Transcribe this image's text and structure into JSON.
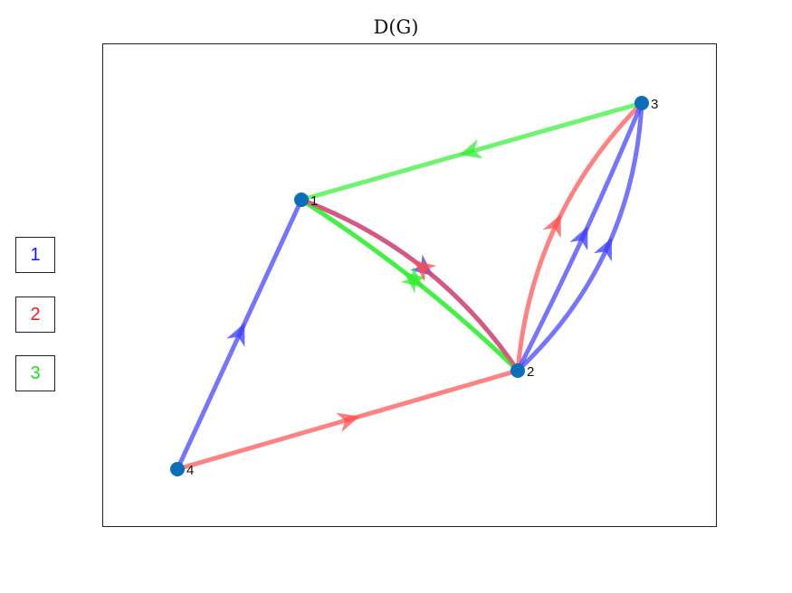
{
  "title": "D(G)",
  "colors": {
    "1": "#3a3aff",
    "2": "#ff4d4d",
    "3": "#33ee33",
    "node": "#0a6fb8"
  },
  "legend": [
    {
      "label": "1",
      "color": "#1414ff"
    },
    {
      "label": "2",
      "color": "#ff1a1a"
    },
    {
      "label": "3",
      "color": "#22dd22"
    }
  ],
  "nodes": [
    {
      "id": "1",
      "label": "1"
    },
    {
      "id": "2",
      "label": "2"
    },
    {
      "id": "3",
      "label": "3"
    },
    {
      "id": "4",
      "label": "4"
    }
  ],
  "edges": [
    {
      "from": "4",
      "to": "1",
      "color": "1"
    },
    {
      "from": "4",
      "to": "2",
      "color": "2"
    },
    {
      "from": "3",
      "to": "1",
      "color": "3"
    },
    {
      "from": "1",
      "to": "2",
      "color": "1"
    },
    {
      "from": "1",
      "to": "2",
      "color": "3"
    },
    {
      "from": "2",
      "to": "1",
      "color": "3"
    },
    {
      "from": "2",
      "to": "1",
      "color": "2"
    },
    {
      "from": "2",
      "to": "3",
      "color": "2"
    },
    {
      "from": "2",
      "to": "3",
      "color": "1"
    },
    {
      "from": "2",
      "to": "3",
      "color": "1"
    }
  ]
}
